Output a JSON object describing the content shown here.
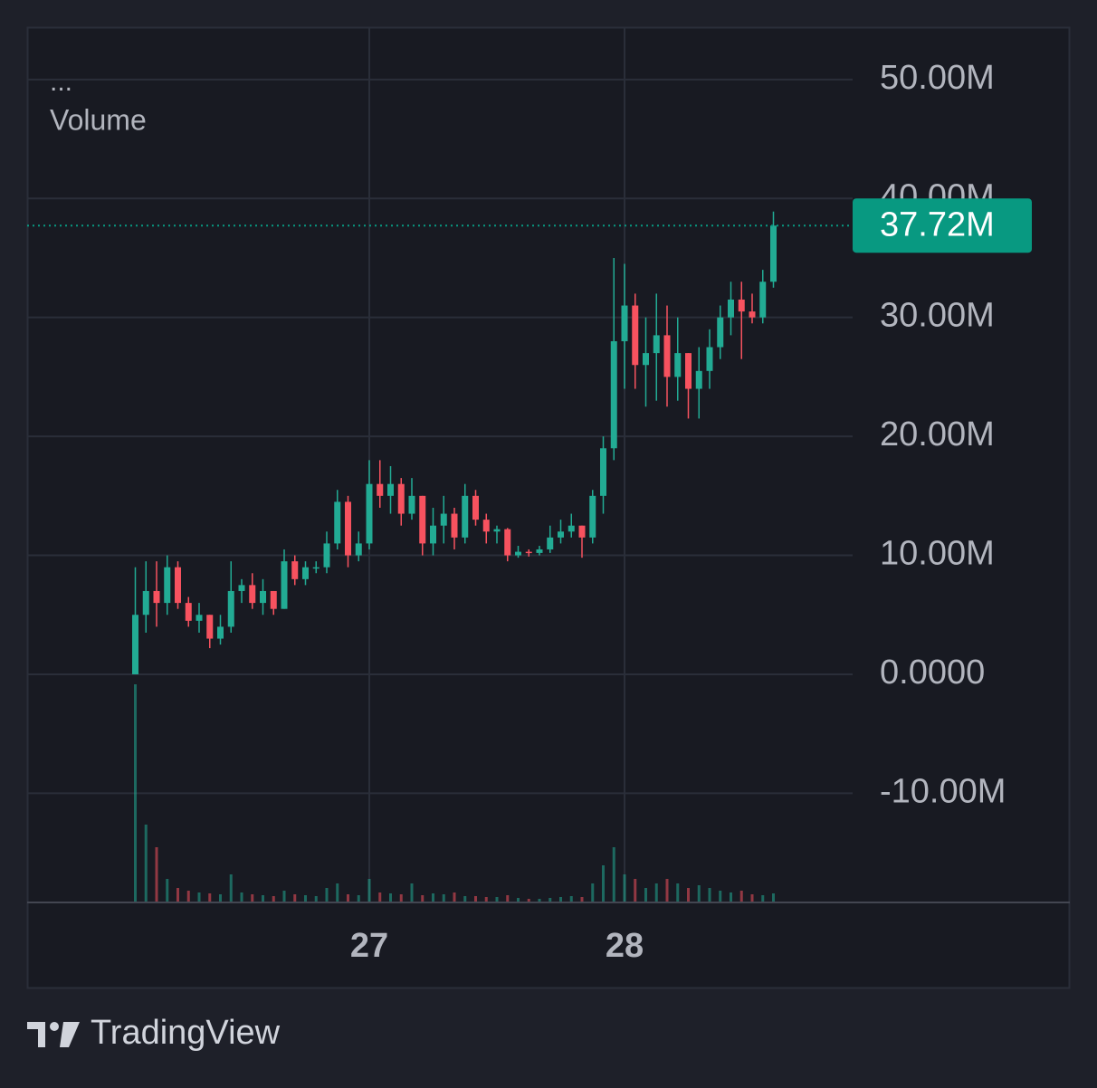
{
  "chart_data": {
    "type": "candlestick",
    "legend": {
      "menu": "...",
      "label": "Volume"
    },
    "footer": "TradingView",
    "categories": [
      null,
      null,
      null,
      null,
      null,
      null,
      null,
      null,
      null,
      null,
      null,
      null,
      null,
      null,
      null,
      null,
      null,
      null,
      null,
      null,
      null,
      null,
      "27",
      null,
      null,
      null,
      null,
      null,
      null,
      null,
      null,
      null,
      null,
      null,
      null,
      null,
      null,
      null,
      null,
      null,
      null,
      null,
      null,
      null,
      null,
      null,
      "28",
      null,
      null,
      null,
      null,
      null,
      null,
      null,
      null,
      null,
      null,
      null,
      null,
      null,
      null
    ],
    "open": [
      0,
      5000000,
      7000000,
      6000000,
      9000000,
      6000000,
      4500000,
      5000000,
      3000000,
      4000000,
      7000000,
      7500000,
      6000000,
      7000000,
      5500000,
      9500000,
      8000000,
      9000000,
      9000000,
      11000000,
      14500000,
      10000000,
      11000000,
      16000000,
      15000000,
      16000000,
      13500000,
      15000000,
      11000000,
      12500000,
      13500000,
      11500000,
      15000000,
      13000000,
      12000000,
      12200000,
      10000000,
      10300000,
      10200000,
      10500000,
      11500000,
      12000000,
      12500000,
      11500000,
      15000000,
      19000000,
      28000000,
      31000000,
      26000000,
      27000000,
      28500000,
      25000000,
      27000000,
      24000000,
      25500000,
      27500000,
      30000000,
      31500000,
      30500000,
      30000000,
      33000000
    ],
    "high": [
      9000000,
      9500000,
      9500000,
      10000000,
      9500000,
      6500000,
      6000000,
      5000000,
      5000000,
      9500000,
      8000000,
      8500000,
      8000000,
      7000000,
      10500000,
      10000000,
      9500000,
      9500000,
      12000000,
      15500000,
      15000000,
      12000000,
      18000000,
      18000000,
      17500000,
      16500000,
      16500000,
      15000000,
      14000000,
      15000000,
      14000000,
      16000000,
      15500000,
      13500000,
      12500000,
      12300000,
      10800000,
      10500000,
      10800000,
      12500000,
      13000000,
      13500000,
      12500000,
      15500000,
      20000000,
      35000000,
      34500000,
      32000000,
      30000000,
      32000000,
      31000000,
      30000000,
      27000000,
      27500000,
      29000000,
      31000000,
      33000000,
      33000000,
      32000000,
      34000000,
      38900000
    ],
    "low": [
      0,
      3500000,
      4000000,
      5000000,
      5500000,
      4000000,
      3500000,
      2200000,
      2500000,
      3500000,
      6000000,
      5500000,
      5000000,
      5000000,
      5500000,
      7500000,
      7500000,
      8500000,
      8500000,
      10500000,
      9000000,
      9500000,
      10500000,
      14000000,
      13500000,
      12500000,
      13000000,
      10000000,
      10000000,
      11000000,
      10500000,
      11000000,
      12500000,
      11000000,
      11000000,
      9500000,
      9800000,
      9900000,
      10000000,
      10200000,
      11000000,
      11500000,
      9800000,
      11000000,
      13500000,
      18000000,
      24000000,
      24000000,
      22500000,
      23000000,
      22500000,
      23000000,
      21500000,
      21500000,
      24000000,
      26500000,
      28500000,
      26500000,
      29500000,
      29500000,
      32500000
    ],
    "close": [
      5000000,
      7000000,
      6000000,
      9000000,
      6000000,
      4500000,
      5000000,
      3000000,
      4000000,
      7000000,
      7500000,
      6000000,
      7000000,
      5500000,
      9500000,
      8000000,
      9000000,
      9000000,
      11000000,
      14500000,
      10000000,
      11000000,
      16000000,
      15000000,
      16000000,
      13500000,
      15000000,
      11000000,
      12500000,
      13500000,
      11500000,
      15000000,
      13000000,
      12000000,
      12200000,
      10000000,
      10300000,
      10200000,
      10500000,
      11500000,
      12000000,
      12500000,
      11500000,
      15000000,
      19000000,
      28000000,
      31000000,
      26000000,
      27000000,
      28500000,
      25000000,
      27000000,
      24000000,
      25500000,
      27500000,
      30000000,
      31500000,
      30500000,
      30000000,
      33000000,
      37720000
    ],
    "volume": [
      240,
      85,
      60,
      25,
      15,
      12,
      10,
      9,
      8,
      30,
      10,
      8,
      7,
      6,
      12,
      8,
      7,
      6,
      15,
      20,
      8,
      7,
      25,
      10,
      9,
      8,
      20,
      7,
      9,
      8,
      10,
      6,
      6,
      5,
      5,
      7,
      4,
      3,
      3,
      4,
      5,
      6,
      5,
      20,
      40,
      60,
      30,
      25,
      15,
      20,
      25,
      20,
      15,
      18,
      15,
      12,
      10,
      12,
      8,
      7,
      9
    ],
    "up_color": "#22ab94",
    "down_color": "#f7525f",
    "ylim": [
      -19100000,
      54400000
    ],
    "yticks": [
      {
        "value": 50000000,
        "label": "50.00M"
      },
      {
        "value": 40000000,
        "label": "40.00M"
      },
      {
        "value": 30000000,
        "label": "30.00M"
      },
      {
        "value": 20000000,
        "label": "20.00M"
      },
      {
        "value": 10000000,
        "label": "10.00M"
      },
      {
        "value": 0,
        "label": "0.0000"
      },
      {
        "value": -10000000,
        "label": "-10.00M"
      }
    ],
    "current_price": {
      "value": 37720000,
      "label": "37.72M"
    },
    "grid": true
  }
}
